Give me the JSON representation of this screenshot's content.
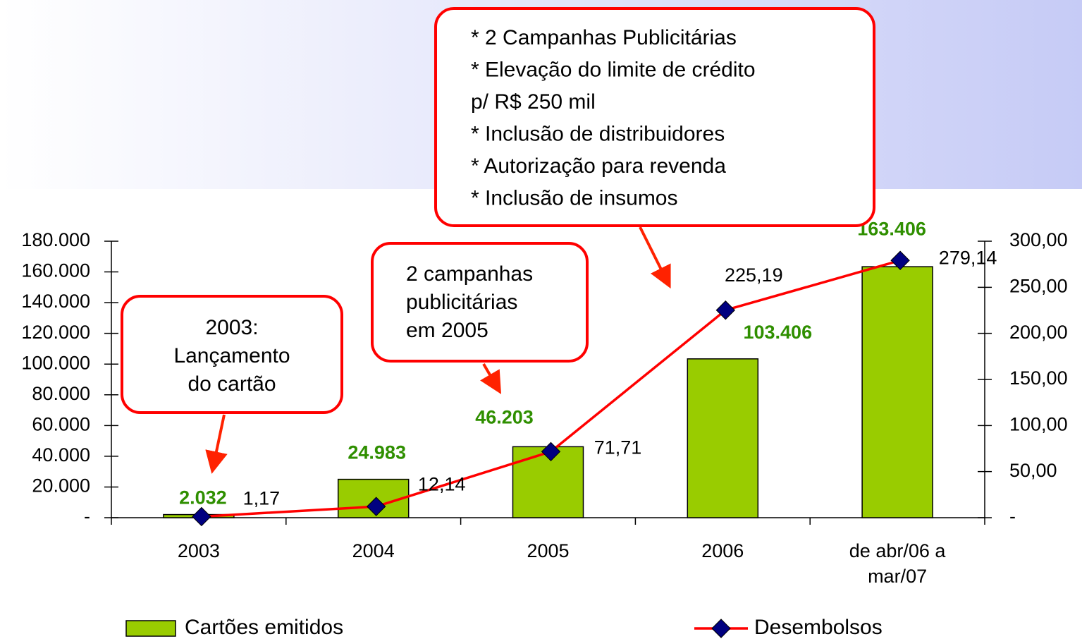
{
  "chart_data": {
    "type": "combo",
    "categories": [
      "2003",
      "2004",
      "2005",
      "2006",
      "de abr/06 a mar/07"
    ],
    "series": [
      {
        "name": "Cartões emitidos",
        "type": "bar",
        "color": "#99cc00",
        "axis": "y",
        "values": [
          2032,
          24983,
          46203,
          103406,
          163406
        ],
        "value_labels": [
          "2.032",
          "24.983",
          "46.203",
          "103.406",
          "163.406"
        ]
      },
      {
        "name": "Desembolsos",
        "type": "line",
        "color": "#ff0000",
        "marker_color": "#000080",
        "axis": "y2",
        "values": [
          1.17,
          12.14,
          71.71,
          225.19,
          279.14
        ],
        "value_labels": [
          "1,17",
          "12,14",
          "71,71",
          "225,19",
          "279,14"
        ]
      }
    ],
    "ylim": [
      0,
      180000
    ],
    "yticks": [
      {
        "value": 0,
        "label": "-"
      },
      {
        "value": 20000,
        "label": "20.000"
      },
      {
        "value": 40000,
        "label": "40.000"
      },
      {
        "value": 60000,
        "label": "60.000"
      },
      {
        "value": 80000,
        "label": "80.000"
      },
      {
        "value": 100000,
        "label": "100.000"
      },
      {
        "value": 120000,
        "label": "120.000"
      },
      {
        "value": 140000,
        "label": "140.000"
      },
      {
        "value": 160000,
        "label": "160.000"
      },
      {
        "value": 180000,
        "label": "180.000"
      }
    ],
    "y2lim": [
      0,
      300
    ],
    "y2ticks": [
      {
        "value": 0,
        "label": "-"
      },
      {
        "value": 50,
        "label": "50,00"
      },
      {
        "value": 100,
        "label": "100,00"
      },
      {
        "value": 150,
        "label": "150,00"
      },
      {
        "value": 200,
        "label": "200,00"
      },
      {
        "value": 250,
        "label": "250,00"
      },
      {
        "value": 300,
        "label": "300,00"
      }
    ],
    "legend": "bottom",
    "annotations": [
      {
        "lines": [
          "2003:",
          "Lançamento",
          "do cartão"
        ]
      },
      {
        "lines": [
          "2 campanhas",
          "publicitárias",
          "em 2005"
        ]
      },
      {
        "lines": [
          "* 2 Campanhas Publicitárias",
          "* Elevação do limite de crédito",
          "p/ R$ 250 mil",
          "* Inclusão de distribuidores",
          "* Autorização para revenda",
          "* Inclusão de insumos"
        ]
      }
    ]
  }
}
